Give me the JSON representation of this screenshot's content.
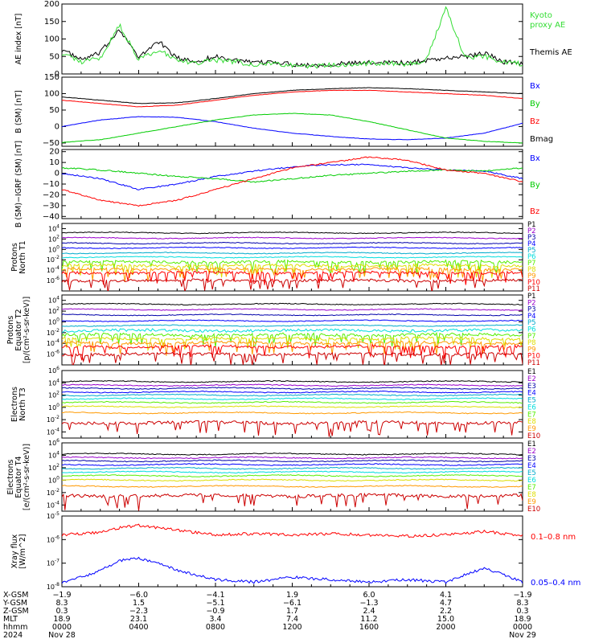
{
  "colors": {
    "black": "#000000",
    "red": "#ff0000",
    "green": "#00cc00",
    "blue": "#0000ff",
    "ae_green": "#33dd33",
    "purple": "#9900cc",
    "navy": "#0000aa",
    "teal": "#00aacc",
    "cyan": "#00dddd",
    "lime": "#55ee00",
    "yellow": "#dddd00",
    "orange": "#ff9900",
    "darkred": "#cc0000"
  },
  "chart_data": [
    {
      "type": "line",
      "ylabel": "AE index [nT]",
      "ylim": [
        0,
        200
      ],
      "yticks": [
        0,
        50,
        100,
        150,
        200
      ],
      "tick_labels": [
        "0",
        "50",
        "100",
        "150",
        "200"
      ],
      "series": [
        {
          "name": "Themis AE",
          "color": "#000000",
          "x": [
            0,
            1,
            2,
            3,
            4,
            5,
            6,
            7,
            8,
            9,
            10,
            11,
            12,
            13,
            14,
            15,
            16,
            17,
            18,
            19,
            20,
            21,
            22,
            23,
            24
          ],
          "values": [
            70,
            40,
            60,
            130,
            45,
            95,
            45,
            35,
            50,
            40,
            30,
            35,
            28,
            25,
            28,
            30,
            32,
            35,
            30,
            40,
            45,
            50,
            60,
            35,
            30
          ]
        },
        {
          "name": "Kyoto proxy AE",
          "color": "#33dd33",
          "x": [
            0,
            1,
            2,
            3,
            4,
            5,
            6,
            7,
            8,
            9,
            10,
            11,
            12,
            13,
            14,
            15,
            16,
            17,
            18,
            19,
            20,
            21,
            22,
            23,
            24
          ],
          "values": [
            60,
            35,
            45,
            140,
            40,
            70,
            40,
            30,
            40,
            35,
            28,
            30,
            25,
            22,
            25,
            28,
            30,
            30,
            28,
            40,
            190,
            45,
            50,
            35,
            28
          ]
        }
      ],
      "legend": [
        {
          "text": "Kyoto",
          "color": "#33dd33"
        },
        {
          "text": "proxy AE",
          "color": "#33dd33"
        },
        {
          "text": "Themis AE",
          "color": "#000000"
        }
      ]
    },
    {
      "type": "line",
      "ylabel": "B (SM) [nT]",
      "ylim": [
        -60,
        150
      ],
      "yticks": [
        -50,
        0,
        50,
        100,
        150
      ],
      "tick_labels": [
        "−50",
        "0",
        "50",
        "100",
        "150"
      ],
      "series": [
        {
          "name": "Bx",
          "color": "#0000ff",
          "x": [
            0,
            2,
            4,
            6,
            8,
            10,
            12,
            14,
            16,
            18,
            20,
            22,
            24
          ],
          "values": [
            0,
            20,
            30,
            28,
            15,
            -5,
            -20,
            -30,
            -38,
            -40,
            -35,
            -20,
            10
          ]
        },
        {
          "name": "By",
          "color": "#00cc00",
          "x": [
            0,
            2,
            4,
            6,
            8,
            10,
            12,
            14,
            16,
            18,
            20,
            22,
            24
          ],
          "values": [
            -48,
            -40,
            -20,
            0,
            20,
            35,
            40,
            35,
            15,
            -10,
            -35,
            -45,
            -50
          ]
        },
        {
          "name": "Bz",
          "color": "#ff0000",
          "x": [
            0,
            2,
            4,
            6,
            8,
            10,
            12,
            14,
            16,
            18,
            20,
            22,
            24
          ],
          "values": [
            80,
            70,
            60,
            65,
            80,
            95,
            105,
            110,
            110,
            105,
            100,
            95,
            85
          ]
        },
        {
          "name": "Bmag",
          "color": "#000000",
          "x": [
            0,
            2,
            4,
            6,
            8,
            10,
            12,
            14,
            16,
            18,
            20,
            22,
            24
          ],
          "values": [
            90,
            80,
            70,
            72,
            85,
            100,
            110,
            115,
            118,
            115,
            110,
            105,
            100
          ]
        }
      ],
      "legend": [
        {
          "text": "Bx",
          "color": "#0000ff"
        },
        {
          "text": "By",
          "color": "#00cc00"
        },
        {
          "text": "Bz",
          "color": "#ff0000"
        },
        {
          "text": "Bmag",
          "color": "#000000"
        }
      ]
    },
    {
      "type": "line",
      "ylabel": "B (SM)−IGRF (SM) [nT]",
      "ylim": [
        -42,
        22
      ],
      "yticks": [
        -40,
        -30,
        -20,
        -10,
        0,
        10,
        20
      ],
      "tick_labels": [
        "−40",
        "−30",
        "−20",
        "−10",
        "0",
        "10",
        "20"
      ],
      "series": [
        {
          "name": "Bx",
          "color": "#0000ff",
          "x": [
            0,
            2,
            4,
            6,
            8,
            10,
            12,
            14,
            16,
            18,
            20,
            22,
            24
          ],
          "values": [
            0,
            -5,
            -15,
            -10,
            -3,
            2,
            6,
            8,
            8,
            5,
            3,
            2,
            -5
          ]
        },
        {
          "name": "By",
          "color": "#00cc00",
          "x": [
            0,
            2,
            4,
            6,
            8,
            10,
            12,
            14,
            16,
            18,
            20,
            22,
            24
          ],
          "values": [
            5,
            3,
            0,
            -3,
            -5,
            -8,
            -5,
            -2,
            0,
            2,
            3,
            2,
            5
          ]
        },
        {
          "name": "Bz",
          "color": "#ff0000",
          "x": [
            0,
            2,
            4,
            6,
            8,
            10,
            12,
            14,
            16,
            18,
            20,
            22,
            24
          ],
          "values": [
            -15,
            -25,
            -30,
            -25,
            -15,
            -5,
            5,
            10,
            15,
            12,
            3,
            0,
            -8
          ]
        }
      ],
      "legend": [
        {
          "text": "Bx",
          "color": "#0000ff"
        },
        {
          "text": "By",
          "color": "#00cc00"
        },
        {
          "text": "Bz",
          "color": "#ff0000"
        }
      ]
    },
    {
      "type": "line",
      "log": true,
      "ylabel": [
        "Protons",
        "North T1"
      ],
      "exp_range": [
        -8,
        5
      ],
      "ytick_exps": [
        -6,
        -4,
        -2,
        0,
        2,
        4
      ],
      "series": [
        {
          "name": "P1",
          "color": "#000000",
          "base": 3.2
        },
        {
          "name": "P2",
          "color": "#9900cc",
          "base": 2.2
        },
        {
          "name": "P3",
          "color": "#0000aa",
          "base": 1.2
        },
        {
          "name": "P4",
          "color": "#0000ff",
          "base": 0.3
        },
        {
          "name": "P5",
          "color": "#00aacc",
          "base": -0.7
        },
        {
          "name": "P6",
          "color": "#00dddd",
          "base": -1.5
        },
        {
          "name": "P7",
          "color": "#55ee00",
          "base": -2.4
        },
        {
          "name": "P8",
          "color": "#dddd00",
          "base": -3.1
        },
        {
          "name": "P9",
          "color": "#ff9900",
          "base": -3.8
        },
        {
          "name": "P10",
          "color": "#ff0000",
          "base": -4.5
        },
        {
          "name": "P11",
          "color": "#cc0000",
          "base": -6
        }
      ]
    },
    {
      "type": "line",
      "log": true,
      "ylabel": [
        "Protons",
        "Equator T2",
        "[p/(cm²-s-sr-keV)]"
      ],
      "exp_range": [
        -8,
        5
      ],
      "ytick_exps": [
        -6,
        -4,
        -2,
        0,
        2,
        4
      ],
      "series": [
        {
          "name": "P1",
          "color": "#000000",
          "base": 3.3
        },
        {
          "name": "P2",
          "color": "#9900cc",
          "base": 2.3
        },
        {
          "name": "P3",
          "color": "#0000aa",
          "base": 1.3
        },
        {
          "name": "P4",
          "color": "#0000ff",
          "base": 0.2
        },
        {
          "name": "P5",
          "color": "#00aacc",
          "base": -0.7
        },
        {
          "name": "P6",
          "color": "#00dddd",
          "base": -1.6
        },
        {
          "name": "P7",
          "color": "#55ee00",
          "base": -2.4
        },
        {
          "name": "P8",
          "color": "#dddd00",
          "base": -3.1
        },
        {
          "name": "P9",
          "color": "#ff9900",
          "base": -3.9
        },
        {
          "name": "P10",
          "color": "#ff0000",
          "base": -4.6
        },
        {
          "name": "P11",
          "color": "#cc0000",
          "base": -6
        }
      ]
    },
    {
      "type": "line",
      "log": true,
      "ylabel": [
        "Electrons",
        "North T3"
      ],
      "exp_range": [
        -5,
        6
      ],
      "ytick_exps": [
        -4,
        -2,
        0,
        2,
        4,
        6
      ],
      "series": [
        {
          "name": "E1",
          "color": "#000000",
          "base": 4.2
        },
        {
          "name": "E2",
          "color": "#9900cc",
          "base": 3.6
        },
        {
          "name": "E3",
          "color": "#0000aa",
          "base": 3.1
        },
        {
          "name": "E4",
          "color": "#0000ff",
          "base": 2.5
        },
        {
          "name": "E5",
          "color": "#00aacc",
          "base": 2
        },
        {
          "name": "E6",
          "color": "#00dddd",
          "base": 1.4
        },
        {
          "name": "E7",
          "color": "#55ee00",
          "base": 0.8
        },
        {
          "name": "E8",
          "color": "#dddd00",
          "base": 0.1
        },
        {
          "name": "E9",
          "color": "#ff9900",
          "base": -0.9
        },
        {
          "name": "E10",
          "color": "#cc0000",
          "base": -2.5
        }
      ]
    },
    {
      "type": "line",
      "log": true,
      "ylabel": [
        "Electrons",
        "Equator T4",
        "[e/(cm²-s-sr-keV)]"
      ],
      "exp_range": [
        -5,
        6
      ],
      "ytick_exps": [
        -4,
        -2,
        0,
        2,
        4,
        6
      ],
      "series": [
        {
          "name": "E1",
          "color": "#000000",
          "base": 4.2
        },
        {
          "name": "E2",
          "color": "#9900cc",
          "base": 3.6
        },
        {
          "name": "E3",
          "color": "#0000aa",
          "base": 3.1
        },
        {
          "name": "E4",
          "color": "#0000ff",
          "base": 2.5
        },
        {
          "name": "E5",
          "color": "#00aacc",
          "base": 1.9
        },
        {
          "name": "E6",
          "color": "#00dddd",
          "base": 1.3
        },
        {
          "name": "E7",
          "color": "#55ee00",
          "base": 0.7
        },
        {
          "name": "E8",
          "color": "#dddd00",
          "base": 0
        },
        {
          "name": "E9",
          "color": "#ff9900",
          "base": -1
        },
        {
          "name": "E10",
          "color": "#cc0000",
          "base": -2.5
        }
      ]
    },
    {
      "type": "line",
      "log": true,
      "ylabel": [
        "Xray flux",
        "[W/m^2]"
      ],
      "exp_range": [
        -8,
        -5
      ],
      "ytick_exps": [
        -8,
        -7,
        -6,
        -5
      ],
      "series": [
        {
          "name": "0.1–0.8 nm",
          "color": "#ff0000",
          "x": [
            0,
            2,
            3,
            4,
            6,
            8,
            10,
            12,
            14,
            16,
            18,
            20,
            22,
            24
          ],
          "values": [
            -5.8,
            -5.7,
            -5.5,
            -5.4,
            -5.6,
            -5.8,
            -5.75,
            -5.8,
            -5.75,
            -5.8,
            -5.85,
            -5.8,
            -5.65,
            -5.85
          ]
        },
        {
          "name": "0.05–0.4 nm",
          "color": "#0000ff",
          "x": [
            0,
            1,
            2,
            3,
            4,
            5,
            6,
            8,
            10,
            12,
            14,
            16,
            18,
            20,
            22,
            24
          ],
          "values": [
            -7.8,
            -7.6,
            -7.3,
            -6.9,
            -6.8,
            -7.0,
            -7.3,
            -7.7,
            -7.8,
            -7.6,
            -7.7,
            -7.8,
            -7.7,
            -7.8,
            -7.2,
            -7.8
          ]
        }
      ]
    }
  ],
  "xaxis": {
    "rows": [
      {
        "label": "X-GSM",
        "values": [
          "−1.9",
          "−6.0",
          "−4.1",
          "1.9",
          "6.0",
          "4.1",
          "−1.9"
        ]
      },
      {
        "label": "Y-GSM",
        "values": [
          "8.3",
          "1.5",
          "−5.1",
          "−6.1",
          "−1.3",
          "4.7",
          "8.3"
        ]
      },
      {
        "label": "Z-GSM",
        "values": [
          "0.3",
          "−2.3",
          "−0.9",
          "1.7",
          "2.4",
          "2.2",
          "0.3"
        ]
      },
      {
        "label": "MLT",
        "values": [
          "18.9",
          "23.1",
          "3.4",
          "7.4",
          "11.2",
          "15.0",
          "18.9"
        ]
      },
      {
        "label": "hhmm",
        "values": [
          "0000",
          "0400",
          "0800",
          "1200",
          "1600",
          "2000",
          "0000"
        ]
      },
      {
        "label": "2024",
        "values": [
          "Nov 28",
          "",
          "",
          "",
          "",
          "",
          "Nov 29"
        ]
      }
    ]
  }
}
